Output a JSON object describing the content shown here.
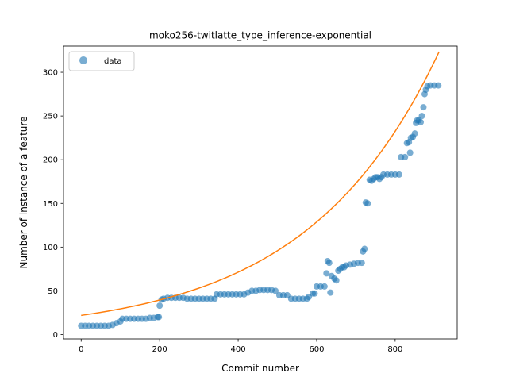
{
  "chart_data": {
    "type": "scatter",
    "title": "moko256-twitlatte_type_inference-exponential",
    "xlabel": "Commit number",
    "ylabel": "Number of instance of a feature",
    "xlim": [
      -45,
      958
    ],
    "ylim": [
      -5,
      330
    ],
    "xticks": [
      0,
      200,
      400,
      600,
      800
    ],
    "yticks": [
      0,
      50,
      100,
      150,
      200,
      250,
      300
    ],
    "legend": {
      "position": "top-left",
      "entries": [
        "data"
      ]
    },
    "grid": false,
    "colors": {
      "data": "#1f77b4",
      "fit": "#ff7f0e"
    },
    "series": [
      {
        "name": "data",
        "kind": "scatter",
        "points": [
          [
            0,
            10
          ],
          [
            10,
            10
          ],
          [
            20,
            10
          ],
          [
            30,
            10
          ],
          [
            40,
            10
          ],
          [
            50,
            10
          ],
          [
            60,
            10
          ],
          [
            70,
            10
          ],
          [
            80,
            11
          ],
          [
            90,
            13
          ],
          [
            100,
            15
          ],
          [
            105,
            18
          ],
          [
            115,
            18
          ],
          [
            125,
            18
          ],
          [
            135,
            18
          ],
          [
            145,
            18
          ],
          [
            155,
            18
          ],
          [
            165,
            18
          ],
          [
            175,
            19
          ],
          [
            185,
            19
          ],
          [
            195,
            20
          ],
          [
            198,
            20
          ],
          [
            200,
            33
          ],
          [
            205,
            40
          ],
          [
            210,
            41
          ],
          [
            220,
            42
          ],
          [
            230,
            42
          ],
          [
            240,
            42
          ],
          [
            250,
            42
          ],
          [
            260,
            42
          ],
          [
            270,
            41
          ],
          [
            280,
            41
          ],
          [
            290,
            41
          ],
          [
            300,
            41
          ],
          [
            310,
            41
          ],
          [
            320,
            41
          ],
          [
            330,
            41
          ],
          [
            340,
            41
          ],
          [
            345,
            46
          ],
          [
            355,
            46
          ],
          [
            365,
            46
          ],
          [
            375,
            46
          ],
          [
            385,
            46
          ],
          [
            395,
            46
          ],
          [
            405,
            46
          ],
          [
            415,
            46
          ],
          [
            425,
            48
          ],
          [
            435,
            50
          ],
          [
            445,
            50
          ],
          [
            455,
            51
          ],
          [
            465,
            51
          ],
          [
            475,
            51
          ],
          [
            485,
            51
          ],
          [
            495,
            50
          ],
          [
            505,
            45
          ],
          [
            515,
            45
          ],
          [
            525,
            45
          ],
          [
            535,
            41
          ],
          [
            545,
            41
          ],
          [
            555,
            41
          ],
          [
            565,
            41
          ],
          [
            575,
            41
          ],
          [
            580,
            43
          ],
          [
            590,
            47
          ],
          [
            595,
            47
          ],
          [
            600,
            55
          ],
          [
            610,
            55
          ],
          [
            620,
            55
          ],
          [
            625,
            70
          ],
          [
            628,
            84
          ],
          [
            632,
            82
          ],
          [
            635,
            48
          ],
          [
            638,
            67
          ],
          [
            645,
            64
          ],
          [
            650,
            62
          ],
          [
            655,
            73
          ],
          [
            660,
            75
          ],
          [
            665,
            77
          ],
          [
            670,
            77
          ],
          [
            675,
            79
          ],
          [
            685,
            80
          ],
          [
            695,
            81
          ],
          [
            705,
            82
          ],
          [
            715,
            82
          ],
          [
            718,
            95
          ],
          [
            722,
            98
          ],
          [
            725,
            151
          ],
          [
            730,
            150
          ],
          [
            735,
            177
          ],
          [
            740,
            176
          ],
          [
            745,
            178
          ],
          [
            750,
            180
          ],
          [
            755,
            180
          ],
          [
            760,
            178
          ],
          [
            765,
            180
          ],
          [
            770,
            183
          ],
          [
            780,
            183
          ],
          [
            790,
            183
          ],
          [
            800,
            183
          ],
          [
            810,
            183
          ],
          [
            815,
            203
          ],
          [
            825,
            203
          ],
          [
            830,
            219
          ],
          [
            835,
            220
          ],
          [
            838,
            208
          ],
          [
            840,
            225
          ],
          [
            845,
            226
          ],
          [
            850,
            230
          ],
          [
            853,
            242
          ],
          [
            856,
            245
          ],
          [
            860,
            245
          ],
          [
            865,
            243
          ],
          [
            868,
            250
          ],
          [
            872,
            260
          ],
          [
            875,
            275
          ],
          [
            878,
            280
          ],
          [
            882,
            284
          ],
          [
            890,
            285
          ],
          [
            900,
            285
          ],
          [
            910,
            285
          ]
        ]
      },
      {
        "name": "",
        "kind": "line",
        "model": "exponential",
        "a": 21.9,
        "b": 0.002953,
        "x_range": [
          0,
          912
        ]
      }
    ]
  }
}
